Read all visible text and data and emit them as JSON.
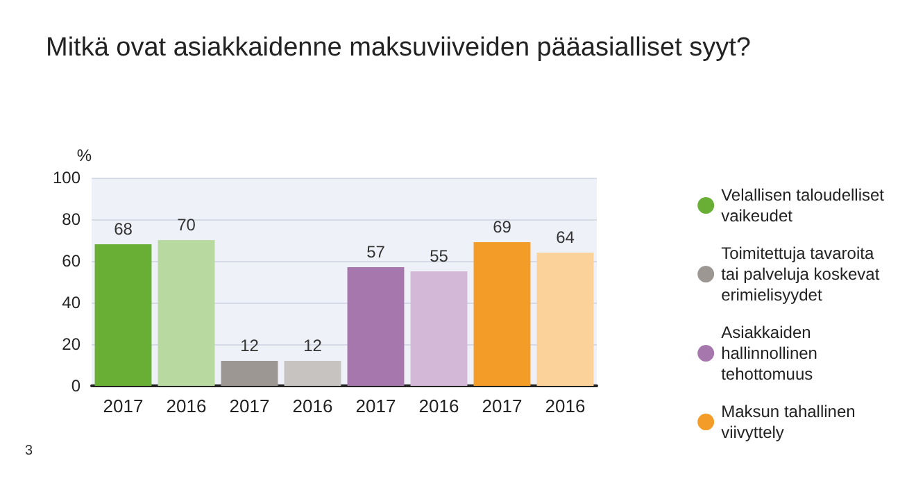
{
  "chart_data": {
    "type": "bar",
    "title": "Mitkä ovat asiakkaidenne maksuviiveiden pääasialliset syyt?",
    "ylabel": "%",
    "categories": [
      "2017",
      "2016",
      "2017",
      "2016",
      "2017",
      "2016",
      "2017",
      "2016"
    ],
    "series": [
      {
        "name": "Velallisen taloudelliset\nvaikeudet",
        "color": "#6aaf35",
        "colors": [
          "#6aaf35",
          "#b8d9a0",
          null,
          null,
          null,
          null,
          null,
          null
        ],
        "values": [
          68,
          70,
          null,
          null,
          null,
          null,
          null,
          null
        ]
      },
      {
        "name": "Toimitettuja tavaroita\ntai palveluja koskevat\nerimielisyydet",
        "color": "#9d9793",
        "colors": [
          null,
          null,
          "#9d9793",
          "#c6c3c0",
          null,
          null,
          null,
          null
        ],
        "values": [
          null,
          null,
          12,
          12,
          null,
          null,
          null,
          null
        ]
      },
      {
        "name": "Asiakkaiden\nhallinnollinen\ntehottomuus",
        "color": "#a677ad",
        "colors": [
          null,
          null,
          null,
          null,
          "#a677ad",
          "#d3b8d8",
          null,
          null
        ],
        "values": [
          null,
          null,
          null,
          null,
          57,
          55,
          null,
          null
        ]
      },
      {
        "name": "Maksun tahallinen\nviivyttely",
        "color": "#f39c27",
        "colors": [
          null,
          null,
          null,
          null,
          null,
          null,
          "#f39c27",
          "#fcd29b"
        ],
        "values": [
          null,
          null,
          null,
          null,
          null,
          null,
          69,
          64
        ]
      }
    ],
    "stacked": true,
    "ylim": [
      0,
      100
    ],
    "yticks": [
      0,
      20,
      40,
      60,
      80,
      100
    ],
    "grid": "y",
    "legend": "right",
    "data_labels": true,
    "annotations": [
      "3"
    ]
  }
}
